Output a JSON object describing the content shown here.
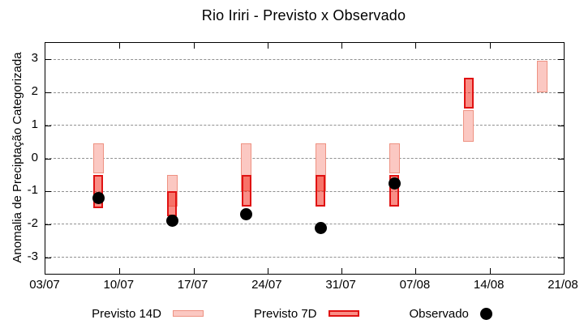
{
  "chart": {
    "title": "Rio Iriri - Previsto x Observado",
    "ylabel": "Anomalia de Preciptação Categorizada",
    "legend": [
      {
        "label": "Previsto 14D",
        "swatch": "band",
        "fill": "#fbc8c2",
        "border": "#ee9282"
      },
      {
        "label": "Previsto 7D",
        "swatch": "band",
        "fill": "rgba(244,30,14,0.5)",
        "border": "#e01212"
      },
      {
        "label": "Observado",
        "swatch": "dot",
        "fill": "#000000",
        "border": "#000000"
      }
    ],
    "colors": {
      "previsto_14d_fill": "#fbc8c2",
      "previsto_14d_border": "#ee9282",
      "previsto_7d_fill": "rgba(244,30,14,0.5)",
      "previsto_7d_border": "#e01212",
      "observado": "#000000",
      "grid": "#909090",
      "axis": "#000000",
      "background": "#ffffff"
    }
  },
  "chart_data": {
    "type": "bar",
    "subtype": "floating-range-bars-with-points",
    "title": "Rio Iriri - Previsto x Observado",
    "xlabel": "",
    "ylabel": "Anomalia de Preciptação Categorizada",
    "ylim": [
      -3.5,
      3.5
    ],
    "x_range_days": [
      0,
      49
    ],
    "grid": true,
    "legend_position": "bottom",
    "y_ticks": [
      3,
      2,
      1,
      0,
      -1,
      -2,
      -3
    ],
    "x_ticks": [
      {
        "label": "03/07",
        "day": 0
      },
      {
        "label": "10/07",
        "day": 7
      },
      {
        "label": "17/07",
        "day": 14
      },
      {
        "label": "24/07",
        "day": 21
      },
      {
        "label": "31/07",
        "day": 28
      },
      {
        "label": "07/08",
        "day": 35
      },
      {
        "label": "14/08",
        "day": 42
      },
      {
        "label": "21/08",
        "day": 49
      }
    ],
    "series": [
      {
        "name": "Previsto 14D",
        "type": "range-bar"
      },
      {
        "name": "Previsto 7D",
        "type": "range-bar"
      },
      {
        "name": "Observado",
        "type": "point"
      }
    ],
    "points": [
      {
        "date": "08/07",
        "day": 5,
        "previsto_14d": [
          -0.45,
          0.45
        ],
        "previsto_7d": [
          -1.5,
          -0.5
        ],
        "observado": -1.2
      },
      {
        "date": "15/07",
        "day": 12,
        "previsto_14d": [
          -1.45,
          -0.5
        ],
        "previsto_7d": [
          -1.75,
          -1.0
        ],
        "observado": -1.9
      },
      {
        "date": "22/07",
        "day": 19,
        "previsto_14d": [
          -1.0,
          0.45
        ],
        "previsto_7d": [
          -1.45,
          -0.5
        ],
        "observado": -1.7
      },
      {
        "date": "29/07",
        "day": 26,
        "previsto_14d": [
          -1.0,
          0.45
        ],
        "previsto_7d": [
          -1.45,
          -0.5
        ],
        "observado": -2.1
      },
      {
        "date": "05/08",
        "day": 33,
        "previsto_14d": [
          -0.45,
          0.45
        ],
        "previsto_7d": [
          -1.45,
          -0.5
        ],
        "observado": -0.75
      },
      {
        "date": "12/08",
        "day": 40,
        "previsto_14d": [
          0.5,
          1.45
        ],
        "previsto_7d": [
          1.5,
          2.45
        ],
        "observado": null
      },
      {
        "date": "19/08",
        "day": 47,
        "previsto_14d": [
          2.0,
          2.95
        ],
        "previsto_7d": null,
        "observado": null
      }
    ]
  }
}
